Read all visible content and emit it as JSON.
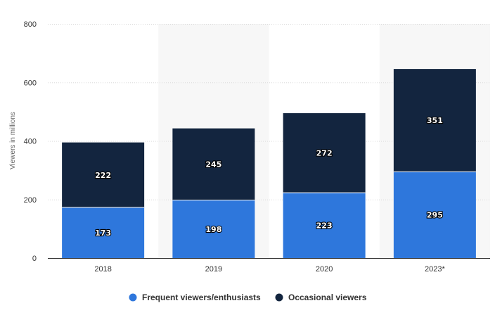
{
  "chart_data": {
    "type": "bar",
    "stacked": true,
    "categories": [
      "2018",
      "2019",
      "2020",
      "2023*"
    ],
    "series": [
      {
        "name": "Frequent viewers/enthusiasts",
        "values": [
          173,
          198,
          223,
          295
        ],
        "color": "#2e77dc"
      },
      {
        "name": "Occasional viewers",
        "values": [
          222,
          245,
          272,
          351
        ],
        "color": "#13253f"
      }
    ],
    "ylabel": "Viewers in millions",
    "xlabel": "",
    "ylim": [
      0,
      800
    ],
    "yticks": [
      0,
      200,
      400,
      600,
      800
    ],
    "grid": true,
    "legend_position": "bottom-center",
    "alternate_band_color": "#f7f7f7",
    "grid_color": "#d9d9d9"
  }
}
